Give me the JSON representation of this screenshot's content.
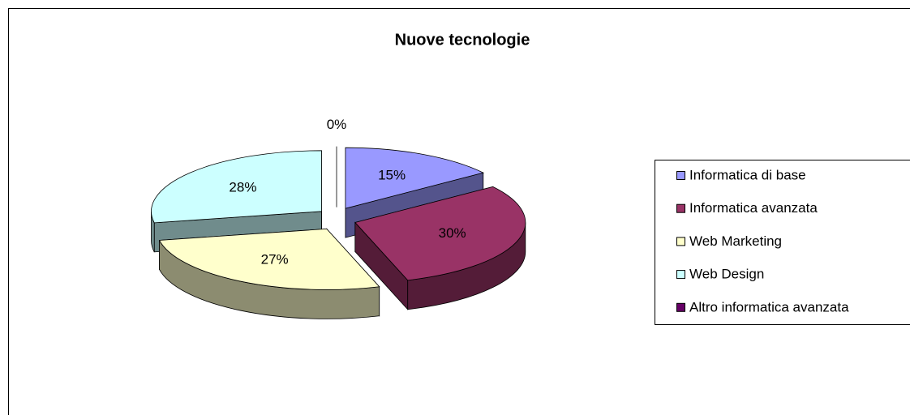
{
  "chart_data": {
    "type": "pie3d",
    "title": "Nuove tecnologie",
    "categories": [
      "Informatica di base",
      "Informatica avanzata",
      "Web Marketing",
      "Web Design",
      "Altro informatica avanzata"
    ],
    "values": [
      15,
      30,
      27,
      28,
      0
    ],
    "value_labels": [
      "15%",
      "30%",
      "27%",
      "28%",
      "0%"
    ],
    "colors": [
      "#9999ff",
      "#993366",
      "#ffffcc",
      "#ccffff",
      "#660066"
    ],
    "legend": "right"
  }
}
